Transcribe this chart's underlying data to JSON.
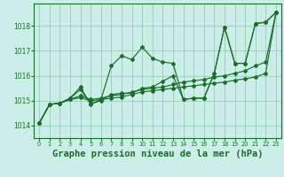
{
  "background_color": "#cceee8",
  "grid_color": "#99ccbb",
  "line_color": "#1a6e2a",
  "xlabel": "Graphe pression niveau de la mer (hPa)",
  "xlabel_fontsize": 7.5,
  "ylim": [
    1013.5,
    1018.9
  ],
  "xlim": [
    -0.5,
    23.5
  ],
  "yticks": [
    1014,
    1015,
    1016,
    1017,
    1018
  ],
  "xticks": [
    0,
    1,
    2,
    3,
    4,
    5,
    6,
    7,
    8,
    9,
    10,
    11,
    12,
    13,
    14,
    15,
    16,
    17,
    18,
    19,
    20,
    21,
    22,
    23
  ],
  "series": [
    [
      1014.1,
      1014.85,
      1014.9,
      1015.1,
      1015.55,
      1014.85,
      1015.05,
      1016.4,
      1016.8,
      1016.65,
      1017.15,
      1016.7,
      1016.55,
      1016.5,
      1015.05,
      1015.1,
      1015.1,
      1016.1,
      1017.95,
      1016.5,
      1016.5,
      1018.1,
      1018.15,
      1018.55
    ],
    [
      1014.1,
      1014.85,
      1014.9,
      1015.05,
      1015.2,
      1015.05,
      1015.1,
      1015.2,
      1015.25,
      1015.35,
      1015.45,
      1015.5,
      1015.55,
      1015.65,
      1015.75,
      1015.8,
      1015.85,
      1015.95,
      1016.0,
      1016.1,
      1016.2,
      1016.4,
      1016.55,
      1018.55
    ],
    [
      1014.1,
      1014.85,
      1014.9,
      1015.05,
      1015.12,
      1015.0,
      1015.05,
      1015.1,
      1015.15,
      1015.25,
      1015.35,
      1015.4,
      1015.45,
      1015.5,
      1015.55,
      1015.6,
      1015.65,
      1015.7,
      1015.75,
      1015.82,
      1015.88,
      1015.95,
      1016.1,
      1018.55
    ],
    [
      1014.1,
      1014.85,
      1014.9,
      1015.1,
      1015.45,
      1014.88,
      1015.0,
      1015.25,
      1015.3,
      1015.3,
      1015.5,
      1015.55,
      1015.78,
      1016.0,
      1015.05,
      1015.1,
      1015.1,
      1016.08,
      1017.95,
      1016.5,
      1016.5,
      1018.1,
      1018.15,
      1018.55
    ]
  ]
}
